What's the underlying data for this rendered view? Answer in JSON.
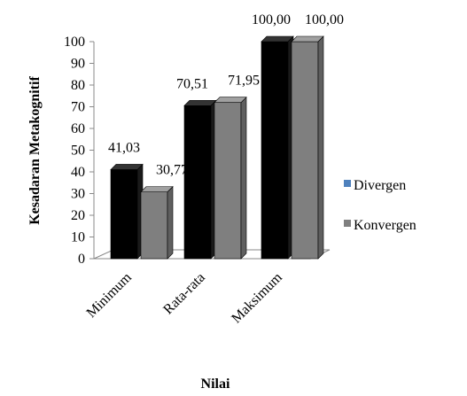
{
  "chart_data": {
    "type": "bar",
    "style": "3d-clustered-column",
    "categories": [
      "Minimum",
      "Rata-rata",
      "Maksimum"
    ],
    "series": [
      {
        "name": "Divergen",
        "values": [
          41.03,
          70.51,
          100.0
        ],
        "labels": [
          "41,03",
          "70,51",
          "100,00"
        ],
        "color": "#000000",
        "legend_color": "#4f81bd"
      },
      {
        "name": "Konvergen",
        "values": [
          30.77,
          71.95,
          100.0
        ],
        "labels": [
          "30,77",
          "71,95",
          "100,00"
        ],
        "color": "#7f7f7f",
        "legend_color": "#7f7f7f"
      }
    ],
    "xlabel": "Nilai",
    "ylabel": "Kesadaran Metakognitif",
    "ylim": [
      0,
      100
    ],
    "yticks": [
      "0",
      "10",
      "20",
      "30",
      "40",
      "50",
      "60",
      "70",
      "80",
      "90",
      "100"
    ],
    "grid": false,
    "legend_position": "right"
  }
}
